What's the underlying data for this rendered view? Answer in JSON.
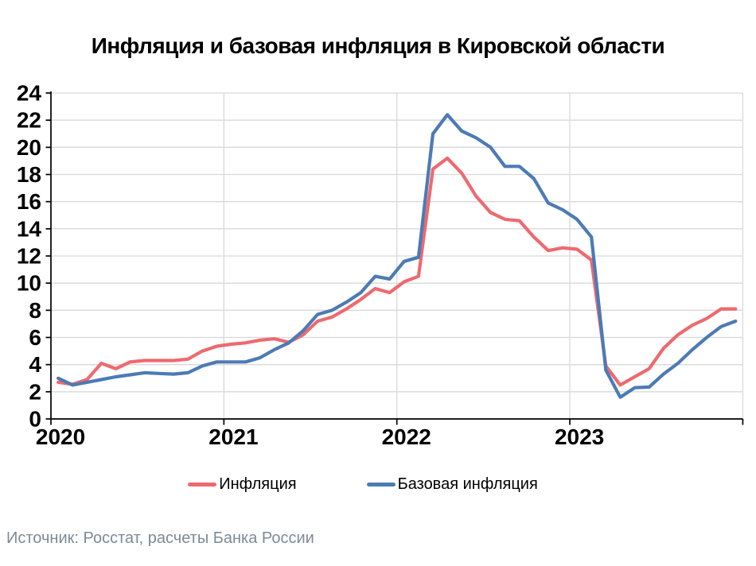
{
  "title": "Инфляция и базовая инфляция в Кировской области",
  "source": "Источник: Росстат, расчеты Банка России",
  "axis": {
    "y_ticks": [
      0,
      2,
      4,
      6,
      8,
      10,
      12,
      14,
      16,
      18,
      20,
      22,
      24
    ],
    "x_labels": [
      "2020",
      "2021",
      "2022",
      "2023"
    ],
    "y_range": [
      0,
      24
    ]
  },
  "chart_data": {
    "type": "line",
    "title": "Инфляция и базовая инфляция в Кировской области",
    "xlabel": "",
    "ylabel": "",
    "ylim": [
      0,
      24
    ],
    "grid": true,
    "legend_position": "bottom",
    "x": [
      "2020-01",
      "2020-02",
      "2020-03",
      "2020-04",
      "2020-05",
      "2020-06",
      "2020-07",
      "2020-08",
      "2020-09",
      "2020-10",
      "2020-11",
      "2020-12",
      "2021-01",
      "2021-02",
      "2021-03",
      "2021-04",
      "2021-05",
      "2021-06",
      "2021-07",
      "2021-08",
      "2021-09",
      "2021-10",
      "2021-11",
      "2021-12",
      "2022-01",
      "2022-02",
      "2022-03",
      "2022-04",
      "2022-05",
      "2022-06",
      "2022-07",
      "2022-08",
      "2022-09",
      "2022-10",
      "2022-11",
      "2022-12",
      "2023-01",
      "2023-02",
      "2023-03",
      "2023-04",
      "2023-05",
      "2023-06",
      "2023-07",
      "2023-08",
      "2023-09",
      "2023-10",
      "2023-11",
      "2023-12"
    ],
    "series": [
      {
        "name": "Инфляция",
        "color": "#ED6A6F",
        "values": [
          2.7,
          2.55,
          2.9,
          4.1,
          3.7,
          4.2,
          4.3,
          4.3,
          4.3,
          4.4,
          5.0,
          5.35,
          5.5,
          5.6,
          5.8,
          5.9,
          5.65,
          6.2,
          7.2,
          7.5,
          8.1,
          8.8,
          9.6,
          9.3,
          10.1,
          10.5,
          18.4,
          19.2,
          18.1,
          16.4,
          15.2,
          14.7,
          14.6,
          13.4,
          12.4,
          12.6,
          12.5,
          11.7,
          3.9,
          2.5,
          3.1,
          3.7,
          5.2,
          6.2,
          6.9,
          7.4,
          8.1,
          8.1
        ]
      },
      {
        "name": "Базовая инфляция",
        "color": "#4C7BB5",
        "values": [
          3.0,
          2.5,
          2.7,
          2.9,
          3.1,
          3.25,
          3.4,
          3.35,
          3.3,
          3.4,
          3.9,
          4.2,
          4.2,
          4.2,
          4.5,
          5.1,
          5.6,
          6.5,
          7.7,
          8.0,
          8.6,
          9.3,
          10.5,
          10.3,
          11.6,
          11.9,
          21.0,
          22.4,
          21.2,
          20.7,
          20.0,
          18.6,
          18.6,
          17.7,
          15.9,
          15.4,
          14.7,
          13.4,
          3.6,
          1.6,
          2.3,
          2.35,
          3.3,
          4.1,
          5.1,
          6.0,
          6.8,
          7.2
        ]
      }
    ]
  }
}
